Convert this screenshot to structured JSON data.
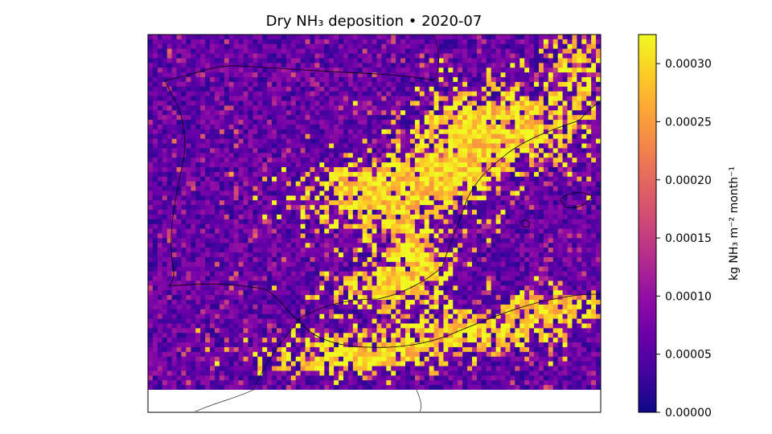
{
  "chart_data": {
    "type": "heatmap",
    "title": "Dry NH₃ deposition  •  2020-07",
    "colorbar": {
      "label": "kg NH₃ m⁻² month⁻¹",
      "vmin": 0.0,
      "vmax": 0.000325,
      "colormap": "plasma",
      "ticks": [
        "0.00000",
        "0.00005",
        "0.00010",
        "0.00015",
        "0.00020",
        "0.00025",
        "0.00030"
      ],
      "tick_values": [
        0.0,
        5e-05,
        0.0001,
        0.00015,
        0.0002,
        0.00025,
        0.0003
      ]
    },
    "grid": {
      "cols": 95,
      "rows": 75,
      "missing_rows_at_bottom": 0
    },
    "regions": {
      "background_mean": 6e-05,
      "high_plume_value": 0.00032,
      "description_keys": [
        "northeast-coast",
        "ebro-valley",
        "central-south",
        "southern-coast",
        "north-africa"
      ]
    },
    "colors": {
      "plasma": [
        "#0d0887",
        "#41049d",
        "#6a00a8",
        "#8f0da4",
        "#b12a90",
        "#cc4778",
        "#e16462",
        "#f2844b",
        "#fca636",
        "#fcce25",
        "#f0f921"
      ],
      "missing": "#ffffff",
      "coastline": "#000000"
    }
  }
}
